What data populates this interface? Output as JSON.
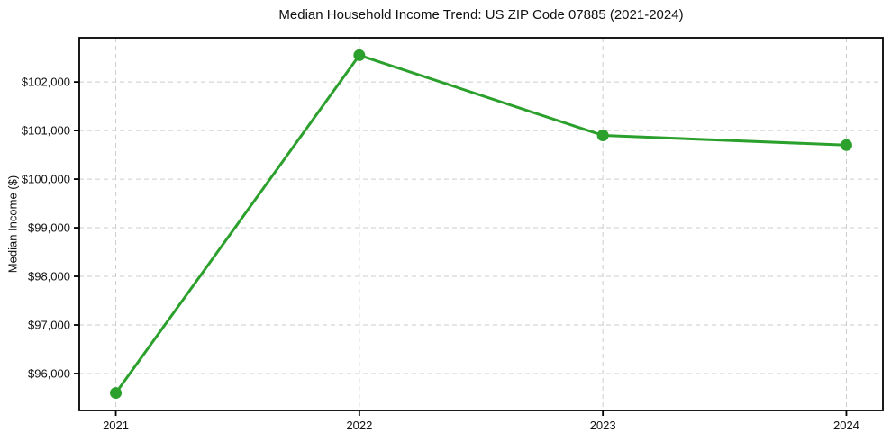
{
  "chart_data": {
    "type": "line",
    "title": "Median Household Income Trend: US ZIP Code 07885 (2021-2024)",
    "xlabel": "",
    "ylabel": "Median Income ($)",
    "x": [
      2021,
      2022,
      2023,
      2024
    ],
    "xtick_labels": [
      "2021",
      "2022",
      "2023",
      "2024"
    ],
    "series": [
      {
        "name": "Median Household Income",
        "values": [
          95600,
          102550,
          100900,
          100700
        ],
        "color": "#2ca02c",
        "marker": "circle",
        "line_width": 3,
        "marker_radius": 6.5
      }
    ],
    "xlim": [
      2020.85,
      2024.15
    ],
    "ylim": [
      95240,
      102910
    ],
    "yticks": [
      96000,
      97000,
      98000,
      99000,
      100000,
      101000,
      102000
    ],
    "ytick_labels": [
      "$96,000",
      "$97,000",
      "$98,000",
      "$99,000",
      "$100,000",
      "$101,000",
      "$102,000"
    ],
    "grid": true,
    "grid_color": "#cccccc",
    "grid_dash": "5,4",
    "axis_color": "#000000",
    "background_color": "#ffffff",
    "legend": "none"
  }
}
